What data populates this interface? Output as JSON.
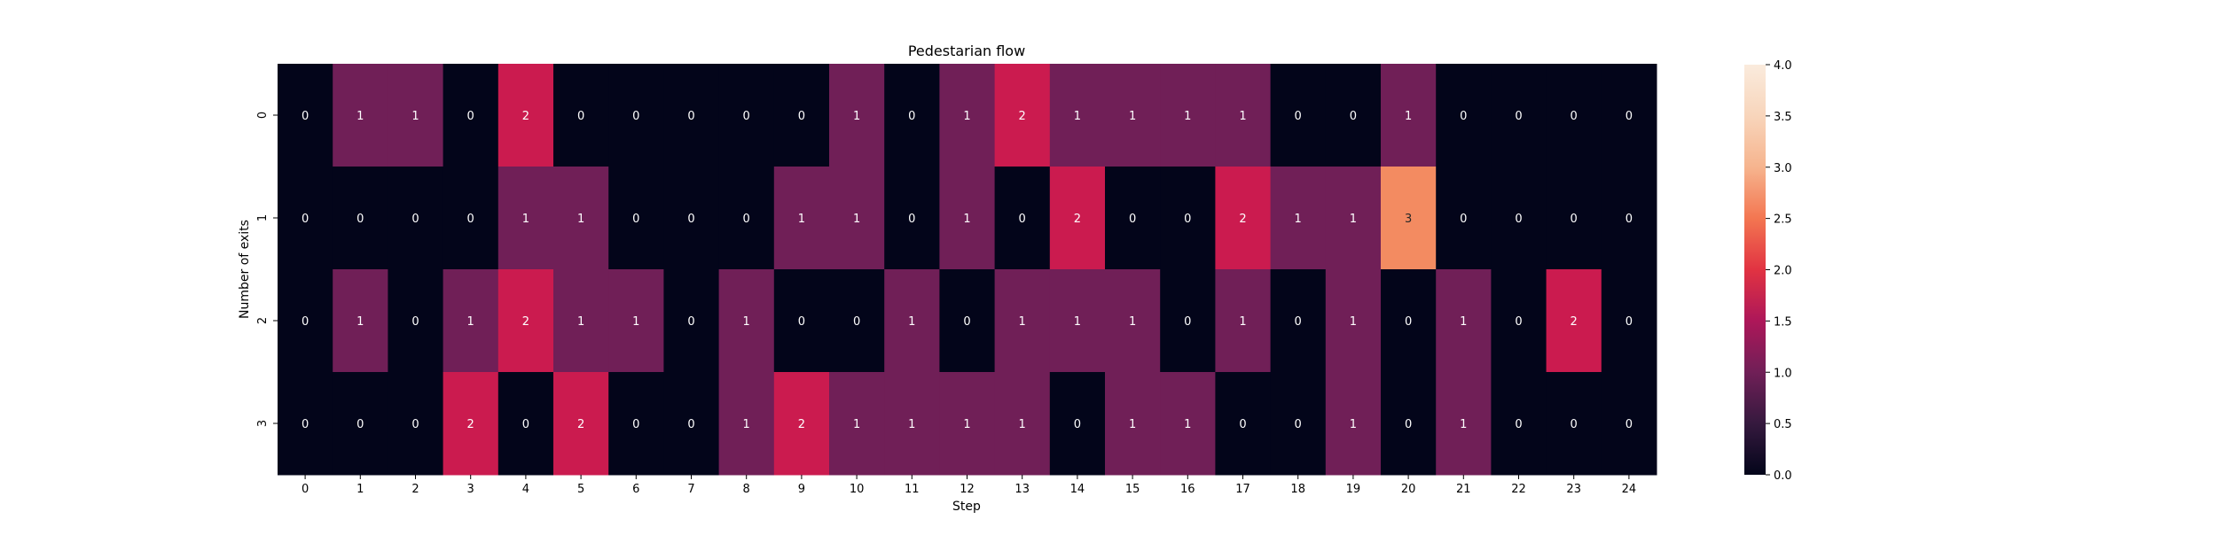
{
  "chart_data": {
    "type": "heatmap",
    "title": "Pedestarian flow",
    "xlabel": "Step",
    "ylabel": "Number of exits",
    "x_categories": [
      "0",
      "1",
      "2",
      "3",
      "4",
      "5",
      "6",
      "7",
      "8",
      "9",
      "10",
      "11",
      "12",
      "13",
      "14",
      "15",
      "16",
      "17",
      "18",
      "19",
      "20",
      "21",
      "22",
      "23",
      "24"
    ],
    "y_categories": [
      "0",
      "1",
      "2",
      "3"
    ],
    "values": [
      [
        0,
        1,
        1,
        0,
        2,
        0,
        0,
        0,
        0,
        0,
        1,
        0,
        1,
        2,
        1,
        1,
        1,
        1,
        0,
        0,
        1,
        0,
        0,
        0,
        0
      ],
      [
        0,
        0,
        0,
        0,
        1,
        1,
        0,
        0,
        0,
        1,
        1,
        0,
        1,
        0,
        2,
        0,
        0,
        2,
        1,
        1,
        3,
        0,
        0,
        0,
        0
      ],
      [
        0,
        1,
        0,
        1,
        2,
        1,
        1,
        0,
        1,
        0,
        0,
        1,
        0,
        1,
        1,
        1,
        0,
        1,
        0,
        1,
        0,
        1,
        0,
        2,
        0
      ],
      [
        0,
        0,
        0,
        2,
        0,
        2,
        0,
        0,
        1,
        2,
        1,
        1,
        1,
        1,
        0,
        1,
        1,
        0,
        0,
        1,
        0,
        1,
        0,
        0,
        0
      ]
    ],
    "colorbar": {
      "min": 0,
      "max": 4,
      "ticks": [
        "0.0",
        "0.5",
        "1.0",
        "1.5",
        "2.0",
        "2.5",
        "3.0",
        "3.5",
        "4.0"
      ],
      "colormap": "rocket"
    },
    "colors": {
      "0": "#03051a",
      "1": "#701f57",
      "2": "#cb1b4f",
      "3": "#f38b61",
      "4": "#faebdd"
    }
  }
}
